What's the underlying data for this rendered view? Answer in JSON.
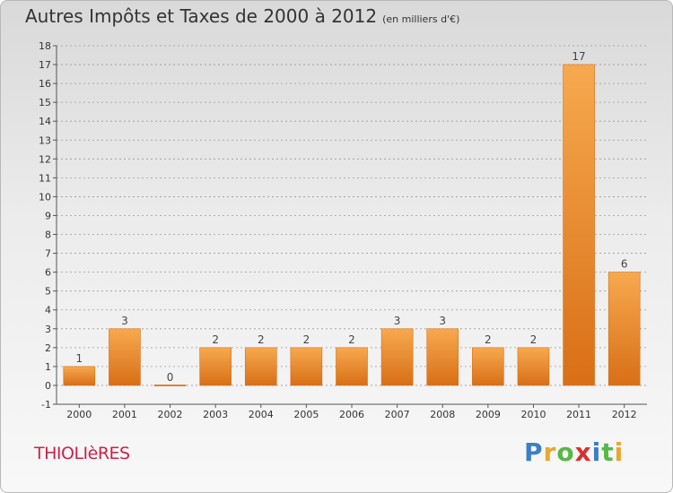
{
  "header": {
    "title": "Autres Impôts et Taxes de 2000 à 2012",
    "subtitle": "(en milliers d'€)"
  },
  "commune": "THIOLIèRES",
  "brand": {
    "letters": [
      "P",
      "r",
      "o",
      "x",
      "i",
      "t",
      "i"
    ],
    "colors": [
      "#3a7fc4",
      "#e8a72d",
      "#58b847",
      "#d8302f",
      "#3a7fc4",
      "#58b847",
      "#e8a72d"
    ]
  },
  "colors": {
    "bar_top": "#f7a94f",
    "bar_bottom": "#d86f16",
    "axis": "#555555",
    "grid": "#999999"
  },
  "chart_data": {
    "type": "bar",
    "title": "Autres Impôts et Taxes de 2000 à 2012",
    "subtitle": "(en milliers d'€)",
    "categories": [
      "2000",
      "2001",
      "2002",
      "2003",
      "2004",
      "2005",
      "2006",
      "2007",
      "2008",
      "2009",
      "2010",
      "2011",
      "2012"
    ],
    "values": [
      1,
      3,
      0,
      2,
      2,
      2,
      2,
      3,
      3,
      2,
      2,
      17,
      6
    ],
    "data_labels": [
      "1",
      "3",
      "0",
      "2",
      "2",
      "2",
      "2",
      "3",
      "3",
      "2",
      "2",
      "17",
      "6"
    ],
    "ylim": [
      -1,
      18
    ],
    "yticks": [
      -1,
      0,
      1,
      2,
      3,
      4,
      5,
      6,
      7,
      8,
      9,
      10,
      11,
      12,
      13,
      14,
      15,
      16,
      17,
      18
    ],
    "ytick_labels": [
      "-1",
      "0",
      "1",
      "2",
      "3",
      "4",
      "5",
      "6",
      "7",
      "8",
      "9",
      "10",
      "11",
      "12",
      "13",
      "14",
      "15",
      "16",
      "17",
      "18"
    ],
    "xlabel": "",
    "ylabel": "",
    "grid": "horizontal dashed",
    "legend": "none"
  }
}
